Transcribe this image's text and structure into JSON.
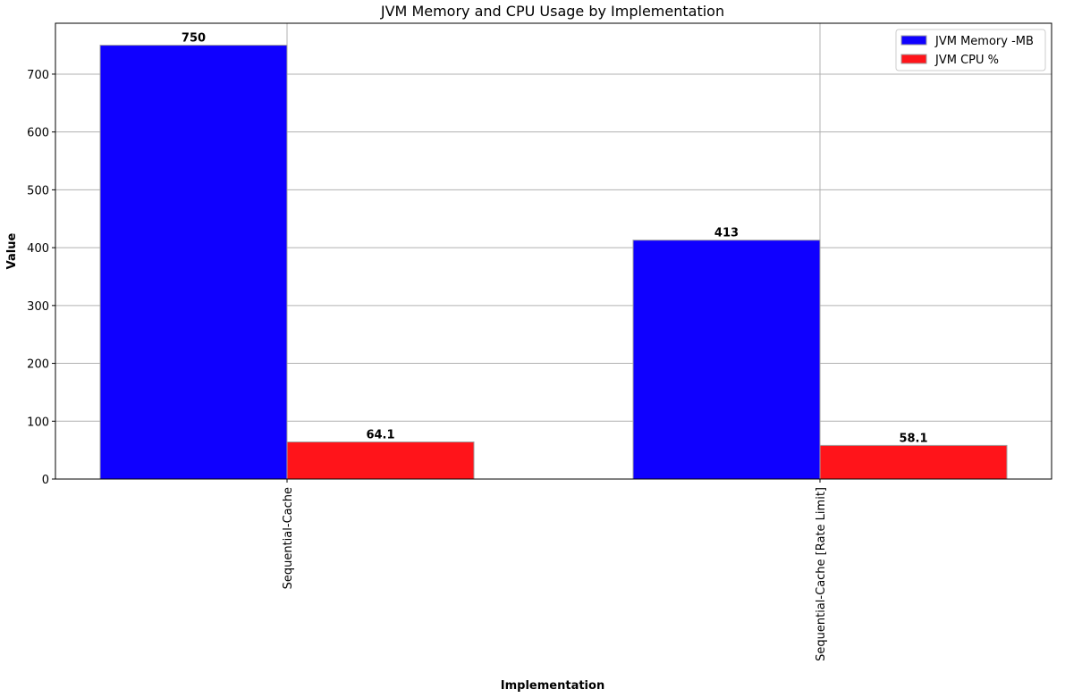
{
  "chart_data": {
    "type": "bar",
    "title": "JVM Memory and CPU Usage by Implementation",
    "xlabel": "Implementation",
    "ylabel": "Value",
    "categories": [
      "Sequential-Cache",
      "Sequential-Cache [Rate Limit]"
    ],
    "series": [
      {
        "name": "JVM Memory -MB",
        "values": [
          750,
          413
        ],
        "labels": [
          "750",
          "413"
        ],
        "color": "#0f00ff"
      },
      {
        "name": "JVM CPU %",
        "values": [
          64.1,
          58.1
        ],
        "labels": [
          "64.1",
          "58.1"
        ],
        "color": "#ff141a"
      }
    ],
    "ylim": [
      0,
      788
    ],
    "yticks": [
      0,
      100,
      200,
      300,
      400,
      500,
      600,
      700
    ],
    "grid": true,
    "legend_position": "top-right"
  }
}
